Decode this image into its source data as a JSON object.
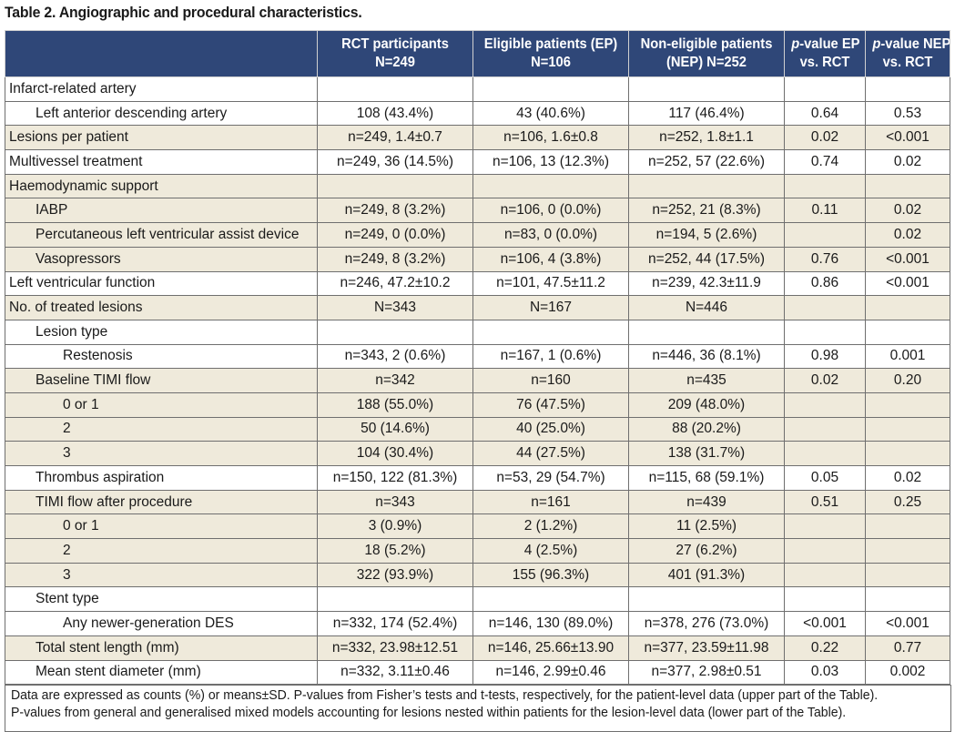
{
  "title": "Table 2. Angiographic and procedural characteristics.",
  "headers": {
    "rct_line1": "RCT participants",
    "rct_line2": "N=249",
    "ep_line1": "Eligible patients (EP)",
    "ep_line2": "N=106",
    "nep_line1": "Non-eligible patients",
    "nep_line2": "(NEP) N=252",
    "pep_italic": "p",
    "pep_rest": "-value EP",
    "pep_line2": "vs. RCT",
    "pnep_italic": "p",
    "pnep_rest": "-value NEP",
    "pnep_line2": "vs. RCT"
  },
  "rows": [
    {
      "label": "Infarct-related artery",
      "indent": 0,
      "shade": false,
      "rct": "",
      "ep": "",
      "nep": "",
      "p_ep": "",
      "p_nep": ""
    },
    {
      "label": "Left anterior descending artery",
      "indent": 1,
      "shade": false,
      "rct": "108 (43.4%)",
      "ep": "43 (40.6%)",
      "nep": "117 (46.4%)",
      "p_ep": "0.64",
      "p_nep": "0.53"
    },
    {
      "label": "Lesions per patient",
      "indent": 0,
      "shade": true,
      "rct": "n=249, 1.4±0.7",
      "ep": "n=106, 1.6±0.8",
      "nep": "n=252, 1.8±1.1",
      "p_ep": "0.02",
      "p_nep": "<0.001"
    },
    {
      "label": "Multivessel treatment",
      "indent": 0,
      "shade": false,
      "rct": "n=249, 36 (14.5%)",
      "ep": "n=106, 13 (12.3%)",
      "nep": "n=252, 57 (22.6%)",
      "p_ep": "0.74",
      "p_nep": "0.02"
    },
    {
      "label": "Haemodynamic support",
      "indent": 0,
      "shade": true,
      "rct": "",
      "ep": "",
      "nep": "",
      "p_ep": "",
      "p_nep": ""
    },
    {
      "label": "IABP",
      "indent": 1,
      "shade": true,
      "rct": "n=249, 8 (3.2%)",
      "ep": "n=106, 0 (0.0%)",
      "nep": "n=252, 21 (8.3%)",
      "p_ep": "0.11",
      "p_nep": "0.02"
    },
    {
      "label": "Percutaneous left ventricular assist device",
      "indent": 1,
      "shade": true,
      "rct": "n=249, 0 (0.0%)",
      "ep": "n=83, 0 (0.0%)",
      "nep": "n=194, 5 (2.6%)",
      "p_ep": "",
      "p_nep": "0.02"
    },
    {
      "label": "Vasopressors",
      "indent": 1,
      "shade": true,
      "rct": "n=249, 8 (3.2%)",
      "ep": "n=106, 4 (3.8%)",
      "nep": "n=252, 44 (17.5%)",
      "p_ep": "0.76",
      "p_nep": "<0.001"
    },
    {
      "label": "Left ventricular function",
      "indent": 0,
      "shade": false,
      "rct": "n=246, 47.2±10.2",
      "ep": "n=101, 47.5±11.2",
      "nep": "n=239, 42.3±11.9",
      "p_ep": "0.86",
      "p_nep": "<0.001"
    },
    {
      "label": "No. of treated lesions",
      "indent": 0,
      "shade": true,
      "rct": "N=343",
      "ep": "N=167",
      "nep": "N=446",
      "p_ep": "",
      "p_nep": ""
    },
    {
      "label": "Lesion type",
      "indent": 1,
      "shade": false,
      "rct": "",
      "ep": "",
      "nep": "",
      "p_ep": "",
      "p_nep": ""
    },
    {
      "label": "Restenosis",
      "indent": 2,
      "shade": false,
      "rct": "n=343, 2 (0.6%)",
      "ep": "n=167, 1 (0.6%)",
      "nep": "n=446, 36 (8.1%)",
      "p_ep": "0.98",
      "p_nep": "0.001"
    },
    {
      "label": "Baseline TIMI flow",
      "indent": 1,
      "shade": true,
      "rct": "n=342",
      "ep": "n=160",
      "nep": "n=435",
      "p_ep": "0.02",
      "p_nep": "0.20"
    },
    {
      "label": "0 or 1",
      "indent": 2,
      "shade": true,
      "rct": "188 (55.0%)",
      "ep": "76 (47.5%)",
      "nep": "209 (48.0%)",
      "p_ep": "",
      "p_nep": ""
    },
    {
      "label": "2",
      "indent": 2,
      "shade": true,
      "rct": "50 (14.6%)",
      "ep": "40 (25.0%)",
      "nep": "88 (20.2%)",
      "p_ep": "",
      "p_nep": ""
    },
    {
      "label": "3",
      "indent": 2,
      "shade": true,
      "rct": "104 (30.4%)",
      "ep": "44 (27.5%)",
      "nep": "138 (31.7%)",
      "p_ep": "",
      "p_nep": ""
    },
    {
      "label": "Thrombus aspiration",
      "indent": 1,
      "shade": false,
      "rct": "n=150, 122 (81.3%)",
      "ep": "n=53, 29 (54.7%)",
      "nep": "n=115, 68 (59.1%)",
      "p_ep": "0.05",
      "p_nep": "0.02"
    },
    {
      "label": "TIMI flow after procedure",
      "indent": 1,
      "shade": true,
      "rct": "n=343",
      "ep": "n=161",
      "nep": "n=439",
      "p_ep": "0.51",
      "p_nep": "0.25"
    },
    {
      "label": "0 or 1",
      "indent": 2,
      "shade": true,
      "rct": "3 (0.9%)",
      "ep": "2 (1.2%)",
      "nep": "11 (2.5%)",
      "p_ep": "",
      "p_nep": ""
    },
    {
      "label": "2",
      "indent": 2,
      "shade": true,
      "rct": "18 (5.2%)",
      "ep": "4 (2.5%)",
      "nep": "27 (6.2%)",
      "p_ep": "",
      "p_nep": ""
    },
    {
      "label": "3",
      "indent": 2,
      "shade": true,
      "rct": "322 (93.9%)",
      "ep": "155 (96.3%)",
      "nep": "401 (91.3%)",
      "p_ep": "",
      "p_nep": ""
    },
    {
      "label": "Stent type",
      "indent": 1,
      "shade": false,
      "rct": "",
      "ep": "",
      "nep": "",
      "p_ep": "",
      "p_nep": ""
    },
    {
      "label": "Any newer-generation DES",
      "indent": 2,
      "shade": false,
      "rct": "n=332, 174 (52.4%)",
      "ep": "n=146, 130 (89.0%)",
      "nep": "n=378, 276 (73.0%)",
      "p_ep": "<0.001",
      "p_nep": "<0.001"
    },
    {
      "label": "Total stent length (mm)",
      "indent": 1,
      "shade": true,
      "rct": "n=332, 23.98±12.51",
      "ep": "n=146, 25.66±13.90",
      "nep": "n=377, 23.59±11.98",
      "p_ep": "0.22",
      "p_nep": "0.77"
    },
    {
      "label": "Mean stent diameter (mm)",
      "indent": 1,
      "shade": false,
      "rct": "n=332, 3.11±0.46",
      "ep": "n=146, 2.99±0.46",
      "nep": "n=377, 2.98±0.51",
      "p_ep": "0.03",
      "p_nep": "0.002"
    }
  ],
  "footnote": {
    "line1": "Data are expressed as counts (%) or means±SD. P-values from Fisher’s tests and t-tests, respectively, for the patient-level data (upper part of the Table).",
    "line2": "P-values from general and generalised mixed models accounting for lesions nested within patients for the lesion-level data (lower part of the Table)."
  },
  "colors": {
    "header_bg": "#2f4778",
    "shade_bg": "#efeadb"
  }
}
